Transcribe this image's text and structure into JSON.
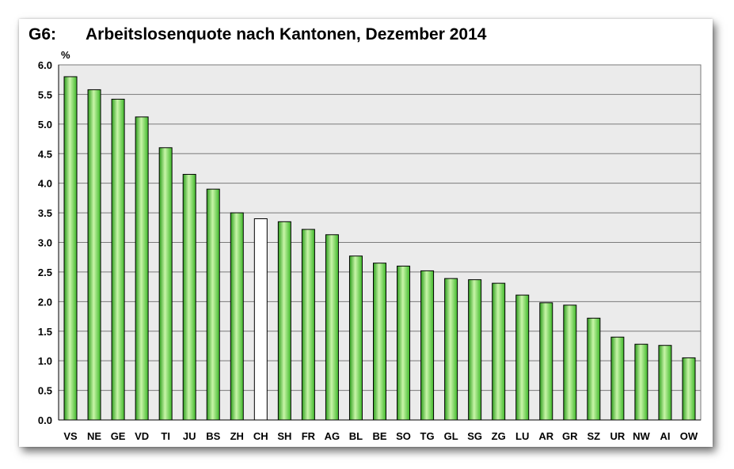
{
  "header": {
    "figure_id": "G6:",
    "title": "Arbeitslosenquote nach Kantonen, Dezember 2014"
  },
  "colors": {
    "bar_fill_light": "#c8f5a8",
    "bar_fill_dark": "#3fb82a",
    "highlight_fill": "#ffffff",
    "plot_background": "#ebebeb",
    "gridline": "#7a7a7a"
  },
  "chart_data": {
    "type": "bar",
    "title": "Arbeitslosenquote nach Kantonen, Dezember 2014",
    "ylabel": "%",
    "xlabel": "",
    "ylim": [
      0,
      6.0
    ],
    "ytick_step": 0.5,
    "yticks": [
      "0.0",
      "0.5",
      "1.0",
      "1.5",
      "2.0",
      "2.5",
      "3.0",
      "3.5",
      "4.0",
      "4.5",
      "5.0",
      "5.5",
      "6.0"
    ],
    "grid": true,
    "legend": "none",
    "highlight_category": "CH",
    "categories": [
      "VS",
      "NE",
      "GE",
      "VD",
      "TI",
      "JU",
      "BS",
      "ZH",
      "CH",
      "SH",
      "FR",
      "AG",
      "BL",
      "BE",
      "SO",
      "TG",
      "GL",
      "SG",
      "ZG",
      "LU",
      "AR",
      "GR",
      "SZ",
      "UR",
      "NW",
      "AI",
      "OW"
    ],
    "values": [
      5.8,
      5.58,
      5.42,
      5.12,
      4.6,
      4.15,
      3.9,
      3.5,
      3.4,
      3.35,
      3.22,
      3.13,
      2.77,
      2.65,
      2.6,
      2.52,
      2.39,
      2.37,
      2.31,
      2.11,
      1.98,
      1.94,
      1.72,
      1.4,
      1.28,
      1.26,
      1.05
    ]
  }
}
